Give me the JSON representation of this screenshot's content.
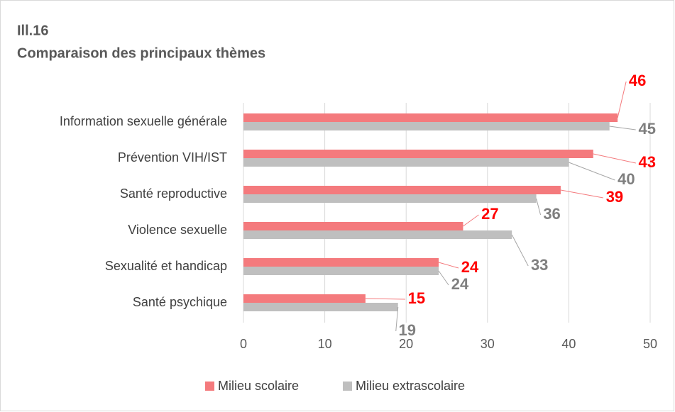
{
  "chart_data": {
    "type": "hbar",
    "figure_label": "Ill.16",
    "title": "Comparaison des principaux thèmes",
    "categories": [
      "Information sexuelle générale",
      "Prévention VIH/IST",
      "Santé reproductive",
      "Violence sexuelle",
      "Sexualité et handicap",
      "Santé psychique"
    ],
    "series": [
      {
        "name": "Milieu scolaire",
        "color": "#f47a7d",
        "label_color": "#ff0000",
        "values": [
          46,
          43,
          39,
          27,
          24,
          15
        ]
      },
      {
        "name": "Milieu extrascolaire",
        "color": "#bfbfbf",
        "label_color": "#7f7f7f",
        "values": [
          45,
          40,
          36,
          33,
          24,
          19
        ]
      }
    ],
    "xlim": [
      0,
      50
    ],
    "xticks": [
      0,
      10,
      20,
      30,
      40,
      50
    ],
    "grid": true,
    "legend": "bottom"
  }
}
